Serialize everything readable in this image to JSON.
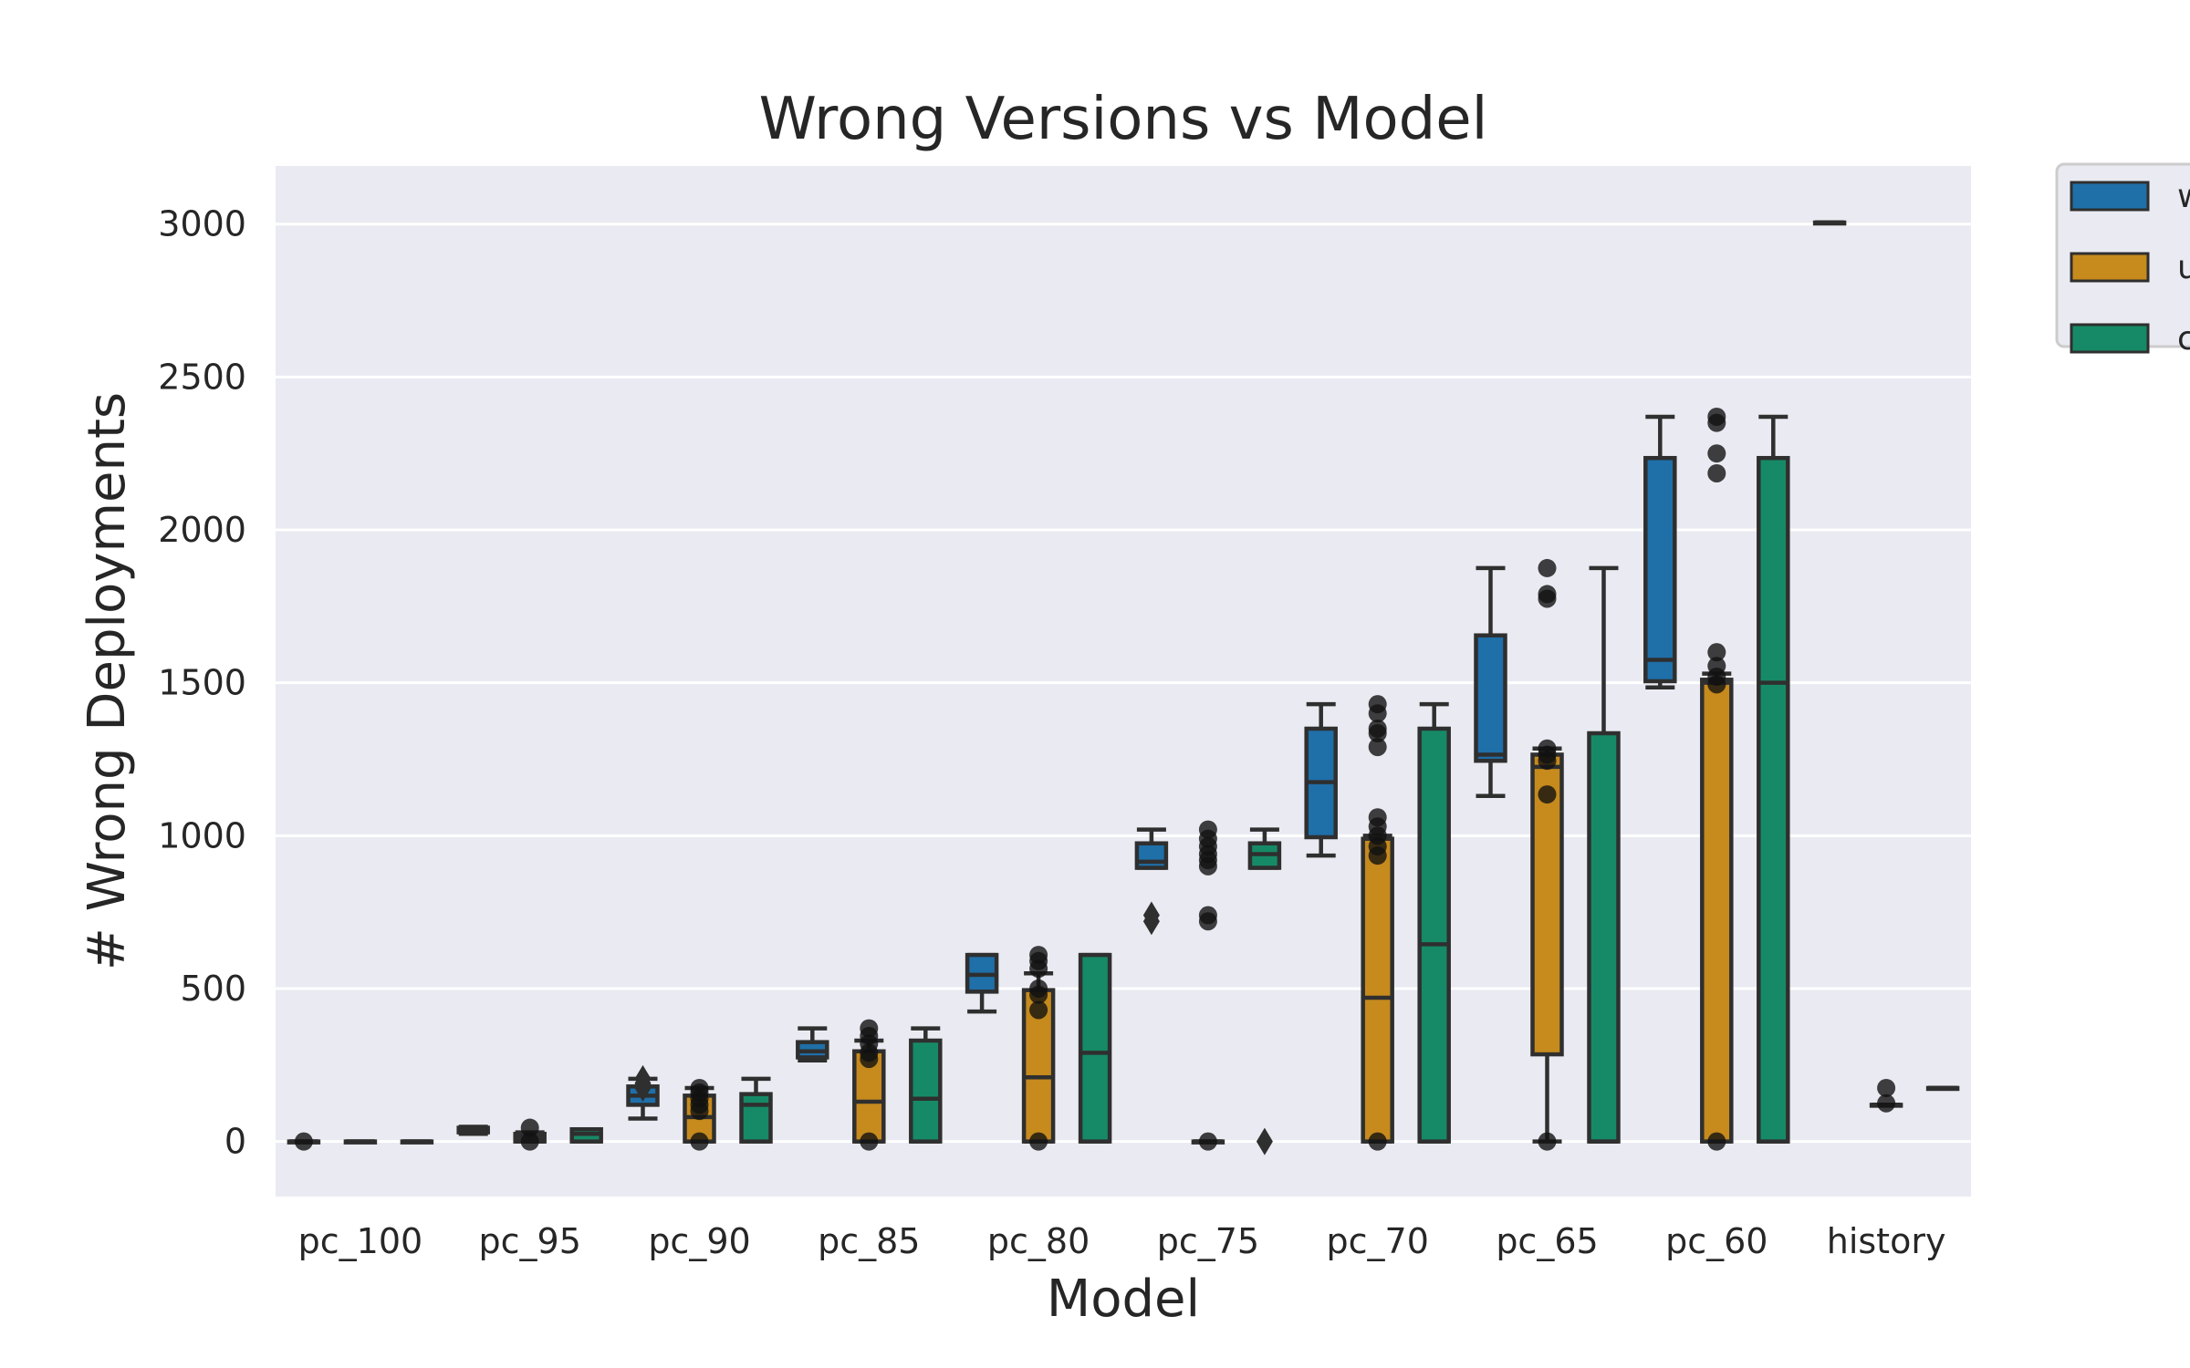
{
  "chart_data": {
    "type": "box",
    "title": "Wrong Versions vs Model",
    "xlabel": "Model",
    "ylabel": "# Wrong Deployments",
    "categories": [
      "pc_100",
      "pc_95",
      "pc_90",
      "pc_85",
      "pc_80",
      "pc_75",
      "pc_70",
      "pc_65",
      "pc_60",
      "history"
    ],
    "ylim": [
      -180,
      3190
    ],
    "yticks": [
      0,
      500,
      1000,
      1500,
      2000,
      2500,
      3000
    ],
    "grid": true,
    "legend_position": "outside-top-right",
    "legend_entries": [
      "w",
      "u",
      "c"
    ],
    "colors": {
      "background": "#eaeaf2",
      "grid": "#ffffff",
      "edge": "#2f2f2f",
      "point": "#111111",
      "series_1": "#1f6fa8",
      "series_2": "#c68a1d",
      "series_3": "#168a66"
    },
    "series": [
      {
        "name": "w",
        "color": "#1f6fa8",
        "boxes": [
          {
            "q1": 0,
            "median": 0,
            "q3": 0,
            "whislo": 0,
            "whishi": 0,
            "fliers": [
              0
            ]
          },
          {
            "q1": 30,
            "median": 38,
            "q3": 45,
            "whislo": 25,
            "whishi": 48,
            "fliers": []
          },
          {
            "q1": 120,
            "median": 150,
            "q3": 180,
            "whislo": 75,
            "whishi": 205,
            "fliers": [
              205,
              190,
              175
            ]
          },
          {
            "q1": 275,
            "median": 295,
            "q3": 325,
            "whislo": 265,
            "whishi": 370,
            "fliers": []
          },
          {
            "q1": 490,
            "median": 545,
            "q3": 610,
            "whislo": 425,
            "whishi": 610,
            "fliers": []
          },
          {
            "q1": 895,
            "median": 915,
            "q3": 975,
            "whislo": 895,
            "whishi": 1020,
            "fliers": [
              740,
              720
            ]
          },
          {
            "q1": 995,
            "median": 1175,
            "q3": 1350,
            "whislo": 935,
            "whishi": 1430,
            "fliers": []
          },
          {
            "q1": 1245,
            "median": 1265,
            "q3": 1655,
            "whislo": 1130,
            "whishi": 1875,
            "fliers": []
          },
          {
            "q1": 1505,
            "median": 1575,
            "q3": 2235,
            "whislo": 1485,
            "whishi": 2370,
            "fliers": []
          },
          {
            "q1": 3005,
            "median": 3005,
            "q3": 3005,
            "whislo": 3005,
            "whishi": 3005,
            "fliers": []
          }
        ]
      },
      {
        "name": "u",
        "color": "#c68a1d",
        "boxes": [
          {
            "q1": 0,
            "median": 0,
            "q3": 0,
            "whislo": 0,
            "whishi": 0,
            "fliers": []
          },
          {
            "q1": 0,
            "median": 12,
            "q3": 25,
            "whislo": 0,
            "whishi": 30,
            "fliers": [
              45,
              0
            ]
          },
          {
            "q1": 0,
            "median": 80,
            "q3": 150,
            "whislo": 0,
            "whishi": 175,
            "fliers": [
              175,
              160,
              140,
              120,
              100,
              0
            ]
          },
          {
            "q1": 0,
            "median": 130,
            "q3": 295,
            "whislo": 0,
            "whishi": 330,
            "fliers": [
              370,
              345,
              320,
              290,
              270,
              0
            ]
          },
          {
            "q1": 0,
            "median": 210,
            "q3": 495,
            "whislo": 0,
            "whishi": 550,
            "fliers": [
              610,
              590,
              565,
              500,
              480,
              430,
              0
            ]
          },
          {
            "q1": 0,
            "median": 0,
            "q3": 0,
            "whislo": 0,
            "whishi": 0,
            "fliers": [
              1020,
              990,
              965,
              940,
              920,
              900,
              740,
              720,
              0
            ]
          },
          {
            "q1": 0,
            "median": 470,
            "q3": 990,
            "whislo": 0,
            "whishi": 1000,
            "fliers": [
              1430,
              1400,
              1350,
              1335,
              1290,
              1060,
              1030,
              1000,
              965,
              935,
              0
            ]
          },
          {
            "q1": 285,
            "median": 1225,
            "q3": 1265,
            "whislo": 0,
            "whishi": 1285,
            "fliers": [
              1875,
              1790,
              1775,
              1285,
              1265,
              1245,
              1135,
              0
            ]
          },
          {
            "q1": 0,
            "median": 1500,
            "q3": 1510,
            "whislo": 0,
            "whishi": 1530,
            "fliers": [
              2370,
              2350,
              2250,
              2185,
              1600,
              1555,
              1520,
              1495,
              0
            ]
          },
          {
            "q1": 120,
            "median": 120,
            "q3": 120,
            "whislo": 120,
            "whishi": 120,
            "fliers": [
              175,
              125
            ]
          }
        ]
      },
      {
        "name": "c",
        "color": "#168a66",
        "boxes": [
          {
            "q1": 0,
            "median": 0,
            "q3": 0,
            "whislo": 0,
            "whishi": 0,
            "fliers": []
          },
          {
            "q1": 0,
            "median": 25,
            "q3": 40,
            "whislo": 0,
            "whishi": 40,
            "fliers": []
          },
          {
            "q1": 0,
            "median": 120,
            "q3": 155,
            "whislo": 0,
            "whishi": 205,
            "fliers": []
          },
          {
            "q1": 0,
            "median": 140,
            "q3": 330,
            "whislo": 0,
            "whishi": 370,
            "fliers": []
          },
          {
            "q1": 0,
            "median": 290,
            "q3": 610,
            "whislo": 0,
            "whishi": 610,
            "fliers": []
          },
          {
            "q1": 895,
            "median": 940,
            "q3": 975,
            "whislo": 895,
            "whishi": 1020,
            "fliers": [
              0
            ]
          },
          {
            "q1": 0,
            "median": 645,
            "q3": 1350,
            "whislo": 0,
            "whishi": 1430,
            "fliers": []
          },
          {
            "q1": 0,
            "median": 0,
            "q3": 1335,
            "whislo": 0,
            "whishi": 1875,
            "fliers": []
          },
          {
            "q1": 0,
            "median": 1500,
            "q3": 2235,
            "whislo": 0,
            "whishi": 2370,
            "fliers": []
          },
          {
            "q1": 175,
            "median": 175,
            "q3": 175,
            "whislo": 175,
            "whishi": 175,
            "fliers": []
          }
        ]
      }
    ]
  }
}
